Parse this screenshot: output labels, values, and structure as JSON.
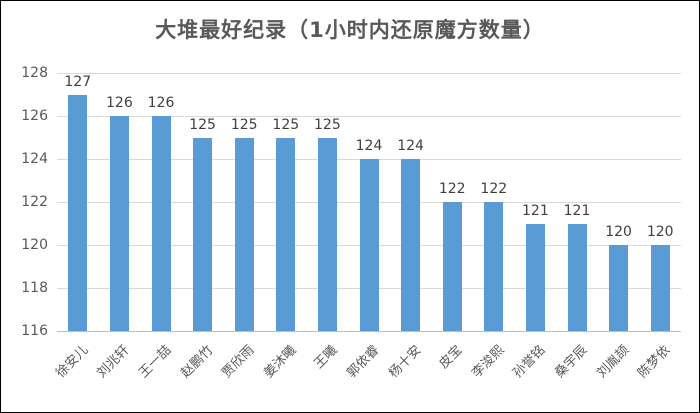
{
  "title": "大堆最好纪录（1小时内还原魔方数量）",
  "colors": {
    "bar": "#5B9BD5",
    "gridline": "#D9D9D9",
    "axis_line": "#BFBFBF",
    "title_text": "#595959",
    "tick_text": "#595959",
    "data_label_text": "#404040",
    "frame_border": "#000000",
    "background": "#FFFFFF"
  },
  "chart_data": {
    "type": "bar",
    "title": "大堆最好纪录（1小时内还原魔方数量）",
    "categories": [
      "徐安儿",
      "刘兆轩",
      "王一喆",
      "赵鹏竹",
      "贾欣雨",
      "姜沐曦",
      "王曦",
      "郭依睿",
      "杨十安",
      "皮宝",
      "李浚熙",
      "孙誉铭",
      "桑宇辰",
      "刘胤颉",
      "陈梦依"
    ],
    "values": [
      127,
      126,
      126,
      125,
      125,
      125,
      125,
      124,
      124,
      122,
      122,
      121,
      121,
      120,
      120
    ],
    "data_labels": [
      127,
      126,
      126,
      125,
      125,
      125,
      125,
      124,
      124,
      122,
      122,
      121,
      121,
      120,
      120
    ],
    "yticks": [
      116,
      118,
      120,
      122,
      124,
      126,
      128
    ],
    "ylim": [
      116,
      128
    ],
    "ytick_step": 2,
    "grid": true,
    "legend_position": "none",
    "xlabel": "",
    "ylabel": ""
  }
}
